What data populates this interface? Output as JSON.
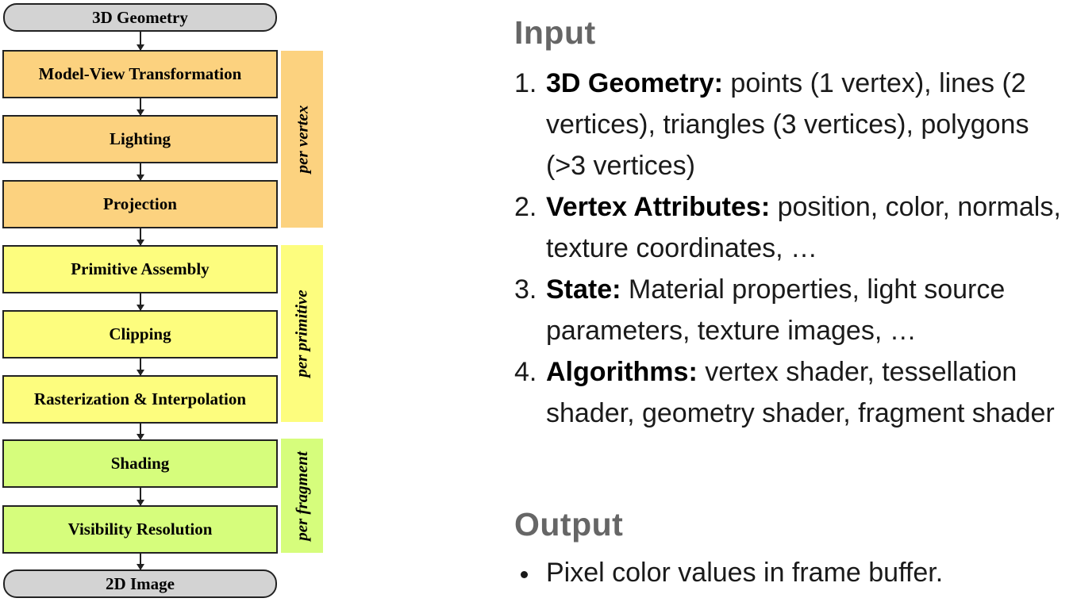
{
  "pipeline": {
    "input": "3D Geometry",
    "output": "2D Image",
    "stages": [
      "Model-View Transformation",
      "Lighting",
      "Projection",
      "Primitive Assembly",
      "Clipping",
      "Rasterization & Interpolation",
      "Shading",
      "Visibility Resolution"
    ],
    "groups": [
      "per vertex",
      "per primitive",
      "per fragment"
    ]
  },
  "colors": {
    "vertex": "#fcd27f",
    "primitive": "#fdfd7e",
    "fragment": "#d6fd7c",
    "endpoint": "#d3d3d3",
    "heading": "#666666"
  },
  "input_section": {
    "heading": "Input",
    "items": [
      {
        "num": "1.",
        "term": "3D Geometry:",
        "text": " points (1 vertex), lines (2 vertices), triangles (3 vertices), polygons (>3 vertices)"
      },
      {
        "num": "2.",
        "term": "Vertex Attributes:",
        "text": " position, color, normals, texture coordinates, …"
      },
      {
        "num": "3.",
        "term": "State:",
        "text": " Material properties, light source parameters, texture images, …"
      },
      {
        "num": "4.",
        "term": "Algorithms:",
        "text": " vertex shader, tessellation shader, geometry shader, fragment shader"
      }
    ]
  },
  "output_section": {
    "heading": "Output",
    "items": [
      "Pixel color values in frame buffer."
    ]
  }
}
